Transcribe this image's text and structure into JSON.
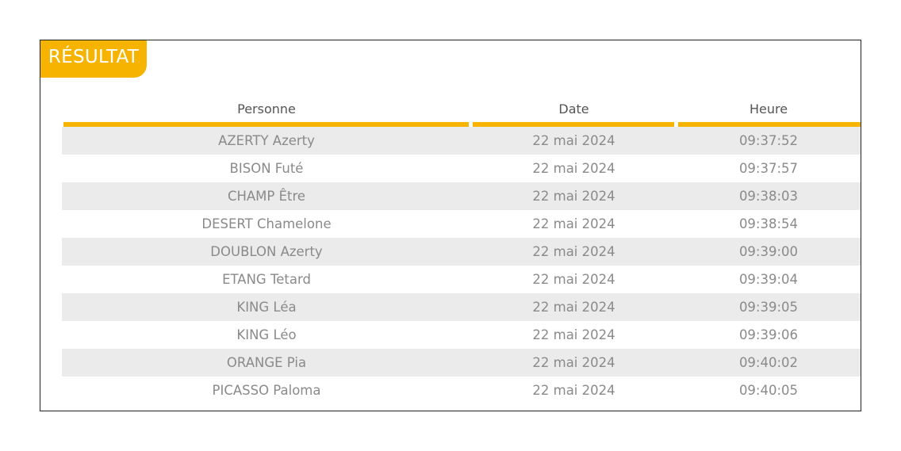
{
  "panel": {
    "badge_label": "RÉSULTAT"
  },
  "table": {
    "columns": [
      "Personne",
      "Date",
      "Heure"
    ],
    "rows": [
      [
        "AZERTY Azerty",
        "22 mai 2024",
        "09:37:52"
      ],
      [
        "BISON Futé",
        "22 mai 2024",
        "09:37:57"
      ],
      [
        "CHAMP Être",
        "22 mai 2024",
        "09:38:03"
      ],
      [
        "DESERT Chamelone",
        "22 mai 2024",
        "09:38:54"
      ],
      [
        "DOUBLON Azerty",
        "22 mai 2024",
        "09:39:00"
      ],
      [
        "ETANG Tetard",
        "22 mai 2024",
        "09:39:04"
      ],
      [
        "KING Léa",
        "22 mai 2024",
        "09:39:05"
      ],
      [
        "KING Léo",
        "22 mai 2024",
        "09:39:06"
      ],
      [
        "ORANGE Pia",
        "22 mai 2024",
        "09:40:02"
      ],
      [
        "PICASSO Paloma",
        "22 mai 2024",
        "09:40:05"
      ]
    ]
  },
  "colors": {
    "accent": "#f6b400",
    "stripe": "#ebebeb",
    "text": "#8a8a8a",
    "header_text": "#555555"
  }
}
